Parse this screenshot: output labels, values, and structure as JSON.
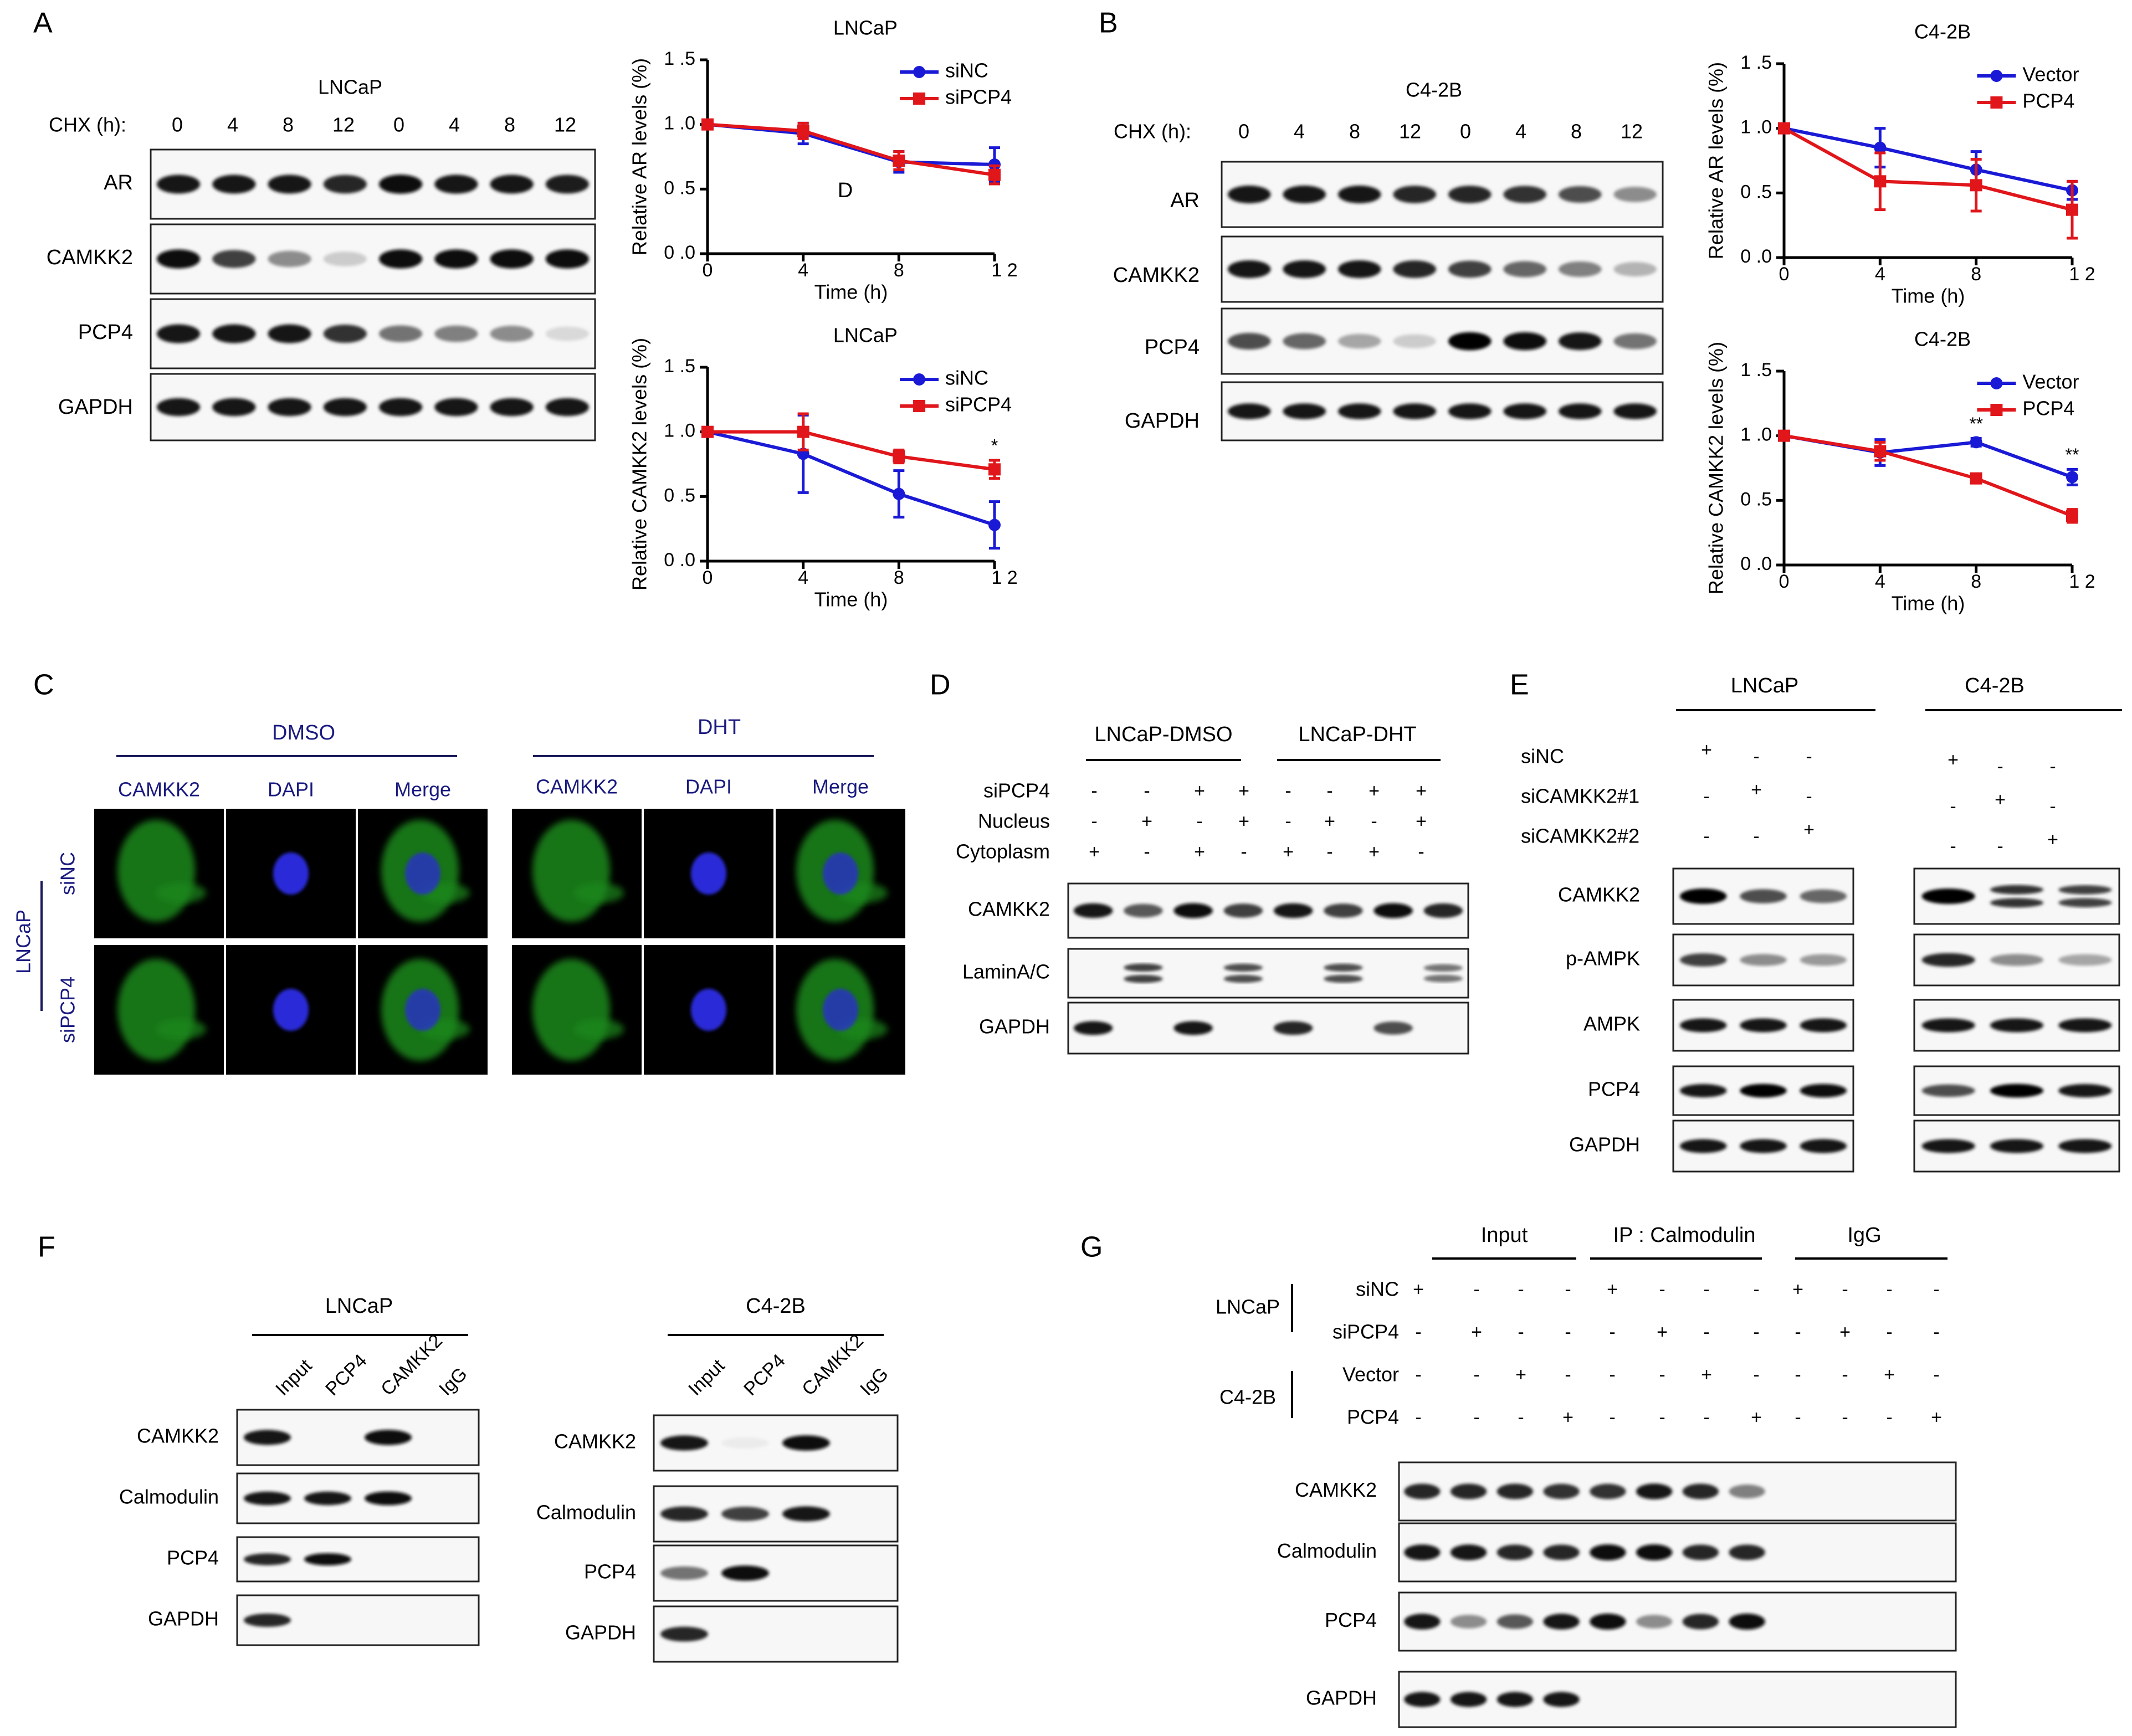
{
  "panels": {
    "A": {
      "letter": "A",
      "cell": "LNCaP",
      "chx_label": "CHX (h):",
      "times": [
        "0",
        "4",
        "8",
        "12",
        "0",
        "4",
        "8",
        "12"
      ],
      "rows": [
        "AR",
        "CAMKK2",
        "PCP4",
        "GAPDH"
      ]
    },
    "B": {
      "letter": "B",
      "cell": "C4-2B",
      "chx_label": "CHX (h):",
      "times": [
        "0",
        "4",
        "8",
        "12",
        "0",
        "4",
        "8",
        "12"
      ],
      "rows": [
        "AR",
        "CAMKK2",
        "PCP4",
        "GAPDH"
      ]
    },
    "C": {
      "letter": "C",
      "groups": [
        "DMSO",
        "DHT"
      ],
      "columns": [
        "CAMKK2",
        "DAPI",
        "Merge"
      ],
      "rows": [
        "siNC",
        "siPCP4"
      ],
      "side": "LNCaP"
    },
    "D": {
      "letter": "D",
      "groups": [
        "LNCaP-DMSO",
        "LNCaP-DHT"
      ],
      "conditions": [
        {
          "label": "siPCP4",
          "marks": [
            "-",
            "-",
            "+",
            "+",
            "-",
            "-",
            "+",
            "+"
          ]
        },
        {
          "label": "Nucleus",
          "marks": [
            "-",
            "+",
            "-",
            "+",
            "-",
            "+",
            "-",
            "+"
          ]
        },
        {
          "label": "Cytoplasm",
          "marks": [
            "+",
            "-",
            "+",
            "-",
            "+",
            "-",
            "+",
            "-"
          ]
        }
      ],
      "rows": [
        "CAMKK2",
        "LaminA/C",
        "GAPDH"
      ]
    },
    "E": {
      "letter": "E",
      "groups": [
        "LNCaP",
        "C4-2B"
      ],
      "conditions": [
        {
          "label": "siNC",
          "marks": [
            "+",
            "-",
            "-"
          ]
        },
        {
          "label": "siCAMKK2#1",
          "marks": [
            "-",
            "+",
            "-"
          ]
        },
        {
          "label": "siCAMKK2#2",
          "marks": [
            "-",
            "-",
            "+"
          ]
        }
      ],
      "rows": [
        "CAMKK2",
        "p-AMPK",
        "AMPK",
        "PCP4",
        "GAPDH"
      ]
    },
    "F": {
      "letter": "F",
      "groups": [
        "LNCaP",
        "C4-2B"
      ],
      "lanes": [
        "Input",
        "PCP4",
        "CAMKK2",
        "IgG"
      ],
      "rows": [
        "CAMKK2",
        "Calmodulin",
        "PCP4",
        "GAPDH"
      ]
    },
    "G": {
      "letter": "G",
      "groups": [
        "Input",
        "IP : Calmodulin",
        "IgG"
      ],
      "side_labels": [
        "LNCaP",
        "C4-2B"
      ],
      "conditions": [
        {
          "label": "siNC",
          "marks": [
            "+",
            "-",
            "-",
            "-",
            "+",
            "-",
            "-",
            "-",
            "+",
            "-",
            "-",
            "-"
          ]
        },
        {
          "label": "siPCP4",
          "marks": [
            "-",
            "+",
            "-",
            "-",
            "-",
            "+",
            "-",
            "-",
            "-",
            "+",
            "-",
            "-"
          ]
        },
        {
          "label": "Vector",
          "marks": [
            "-",
            "-",
            "+",
            "-",
            "-",
            "-",
            "+",
            "-",
            "-",
            "-",
            "+",
            "-"
          ]
        },
        {
          "label": "PCP4",
          "marks": [
            "-",
            "-",
            "-",
            "+",
            "-",
            "-",
            "-",
            "+",
            "-",
            "-",
            "-",
            "+"
          ]
        }
      ],
      "rows": [
        "CAMKK2",
        "Calmodulin",
        "PCP4",
        "GAPDH"
      ]
    }
  },
  "chart_data": [
    {
      "type": "line",
      "title": "LNCaP",
      "xlabel": "Time (h)",
      "ylabel": "Relative AR levels (%)",
      "x": [
        0,
        4,
        8,
        12
      ],
      "ylim": [
        0,
        1.5
      ],
      "xticks": [
        "0",
        "4",
        "8",
        "1 2"
      ],
      "yticks": [
        "0 .0",
        "0 .5",
        "1 .0",
        "1 .5"
      ],
      "note": "D",
      "series": [
        {
          "name": "siNC",
          "color": "#1a1ad6",
          "values": [
            1.0,
            0.93,
            0.71,
            0.69
          ],
          "err": [
            0.02,
            0.08,
            0.08,
            0.13
          ]
        },
        {
          "name": "siPCP4",
          "color": "#e0161b",
          "values": [
            1.0,
            0.95,
            0.72,
            0.61
          ],
          "err": [
            0.02,
            0.06,
            0.07,
            0.07
          ]
        }
      ],
      "marks": []
    },
    {
      "type": "line",
      "title": "LNCaP",
      "xlabel": "Time (h)",
      "ylabel": "Relative CAMKK2 levels (%)",
      "x": [
        0,
        4,
        8,
        12
      ],
      "ylim": [
        0,
        1.5
      ],
      "xticks": [
        "0",
        "4",
        "8",
        "1 2"
      ],
      "yticks": [
        "0 .0",
        "0 .5",
        "1 .0",
        "1 .5"
      ],
      "series": [
        {
          "name": "siNC",
          "color": "#1a1ad6",
          "values": [
            1.0,
            0.83,
            0.52,
            0.28
          ],
          "err": [
            0.02,
            0.3,
            0.18,
            0.18
          ]
        },
        {
          "name": "siPCP4",
          "color": "#e0161b",
          "values": [
            1.0,
            1.0,
            0.81,
            0.71
          ],
          "err": [
            0.02,
            0.14,
            0.05,
            0.07
          ]
        }
      ],
      "marks": [
        {
          "x": 12,
          "text": "*"
        }
      ]
    },
    {
      "type": "line",
      "title": "C4-2B",
      "xlabel": "Time (h)",
      "ylabel": "Relative AR levels (%)",
      "x": [
        0,
        4,
        8,
        12
      ],
      "ylim": [
        0,
        1.5
      ],
      "xticks": [
        "0",
        "4",
        "8",
        "1 2"
      ],
      "yticks": [
        "0 .0",
        "0 .5",
        "1 .0",
        "1 .5"
      ],
      "series": [
        {
          "name": "Vector",
          "color": "#1a1ad6",
          "values": [
            1.0,
            0.85,
            0.68,
            0.52
          ],
          "err": [
            0.02,
            0.15,
            0.14,
            0.07
          ]
        },
        {
          "name": "PCP4",
          "color": "#e0161b",
          "values": [
            1.0,
            0.59,
            0.56,
            0.37
          ],
          "err": [
            0.02,
            0.22,
            0.2,
            0.22
          ]
        }
      ],
      "marks": []
    },
    {
      "type": "line",
      "title": "C4-2B",
      "xlabel": "Time (h)",
      "ylabel": "Relative CAMKK2 levels (%)",
      "x": [
        0,
        4,
        8,
        12
      ],
      "ylim": [
        0,
        1.5
      ],
      "xticks": [
        "0",
        "4",
        "8",
        "1 2"
      ],
      "yticks": [
        "0 .0",
        "0 .5",
        "1 .0",
        "1 .5"
      ],
      "series": [
        {
          "name": "Vector",
          "color": "#1a1ad6",
          "values": [
            1.0,
            0.87,
            0.95,
            0.68
          ],
          "err": [
            0.02,
            0.1,
            0.03,
            0.06
          ]
        },
        {
          "name": "PCP4",
          "color": "#e0161b",
          "values": [
            1.0,
            0.88,
            0.67,
            0.38
          ],
          "err": [
            0.02,
            0.07,
            0.03,
            0.05
          ]
        }
      ],
      "marks": [
        {
          "x": 8,
          "text": "**"
        },
        {
          "x": 12,
          "text": "**"
        }
      ]
    }
  ]
}
